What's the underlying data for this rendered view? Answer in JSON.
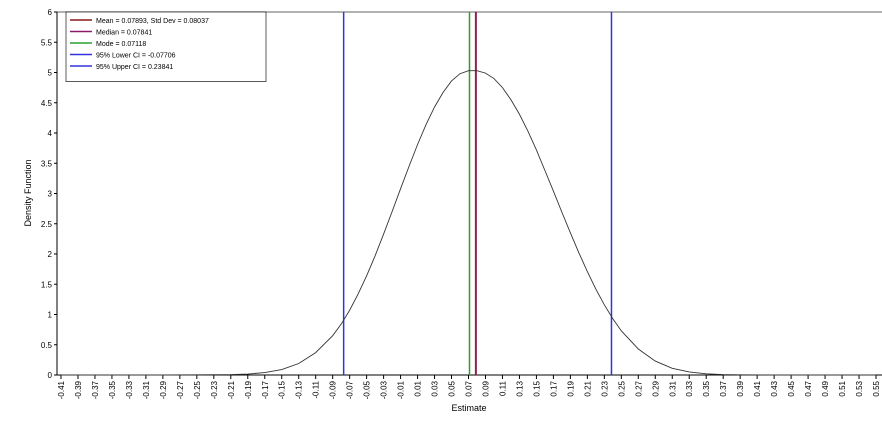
{
  "chart_data": {
    "type": "line",
    "title": "",
    "xlabel": "Estimate",
    "ylabel": "Density Function",
    "xlim": [
      -0.41,
      0.55
    ],
    "ylim": [
      0,
      6
    ],
    "x_tick_labels": [
      "-0.41",
      "-0.39",
      "-0.37",
      "-0.35",
      "-0.33",
      "-0.31",
      "-0.29",
      "-0.27",
      "-0.25",
      "-0.23",
      "-0.21",
      "-0.19",
      "-0.17",
      "-0.15",
      "-0.13",
      "-0.11",
      "-0.09",
      "-0.07",
      "-0.05",
      "-0.03",
      "-0.01",
      "0.01",
      "0.03",
      "0.05",
      "0.07",
      "0.09",
      "0.11",
      "0.13",
      "0.15",
      "0.17",
      "0.19",
      "0.21",
      "0.23",
      "0.25",
      "0.27",
      "0.29",
      "0.31",
      "0.33",
      "0.35",
      "0.37",
      "0.39",
      "0.41",
      "0.43",
      "0.45",
      "0.47",
      "0.49",
      "0.51",
      "0.53",
      "0.55"
    ],
    "y_tick_labels": [
      "0",
      "0.5",
      "1",
      "1.5",
      "2",
      "2.5",
      "3",
      "3.5",
      "4",
      "4.5",
      "5",
      "5.5",
      "6"
    ],
    "grid": false,
    "legend_position": "top-left",
    "series": [
      {
        "color": "#333333",
        "x": [
          -0.41,
          -0.37,
          -0.33,
          -0.29,
          -0.25,
          -0.21,
          -0.19,
          -0.17,
          -0.15,
          -0.13,
          -0.11,
          -0.09,
          -0.08,
          -0.07,
          -0.06,
          -0.05,
          -0.04,
          -0.03,
          -0.02,
          -0.01,
          0.0,
          0.01,
          0.02,
          0.03,
          0.04,
          0.05,
          0.06,
          0.07,
          0.08,
          0.09,
          0.1,
          0.11,
          0.12,
          0.13,
          0.14,
          0.15,
          0.16,
          0.17,
          0.18,
          0.19,
          0.2,
          0.21,
          0.22,
          0.23,
          0.24,
          0.25,
          0.27,
          0.29,
          0.31,
          0.33,
          0.35,
          0.37,
          0.39,
          0.43,
          0.47,
          0.51,
          0.55
        ],
        "y": [
          0,
          0,
          0,
          0,
          0.002,
          0.007,
          0.016,
          0.04,
          0.09,
          0.19,
          0.37,
          0.65,
          0.84,
          1.07,
          1.34,
          1.64,
          1.97,
          2.33,
          2.7,
          3.08,
          3.45,
          3.81,
          4.14,
          4.43,
          4.67,
          4.86,
          4.98,
          5.03,
          5.03,
          4.99,
          4.9,
          4.75,
          4.55,
          4.31,
          4.03,
          3.72,
          3.38,
          3.04,
          2.69,
          2.35,
          2.02,
          1.71,
          1.42,
          1.16,
          0.93,
          0.73,
          0.43,
          0.23,
          0.11,
          0.05,
          0.02,
          0.008,
          0.003,
          0,
          0,
          0,
          0
        ]
      }
    ],
    "vlines": [
      {
        "label": "Mean = 0.07893, Std Dev = 0.08037",
        "x": 0.07893,
        "color": "#8b1a1a"
      },
      {
        "label": "Median = 0.07841",
        "x": 0.07841,
        "color": "#8b1a6b"
      },
      {
        "label": "Mode = 0.07118",
        "x": 0.07118,
        "color": "#2ca02c"
      },
      {
        "label": "95% Lower CI = -0.07706",
        "x": -0.07706,
        "color": "#3333dd"
      },
      {
        "label": "95% Upper CI = 0.23841",
        "x": 0.23841,
        "color": "#3333dd"
      }
    ]
  }
}
